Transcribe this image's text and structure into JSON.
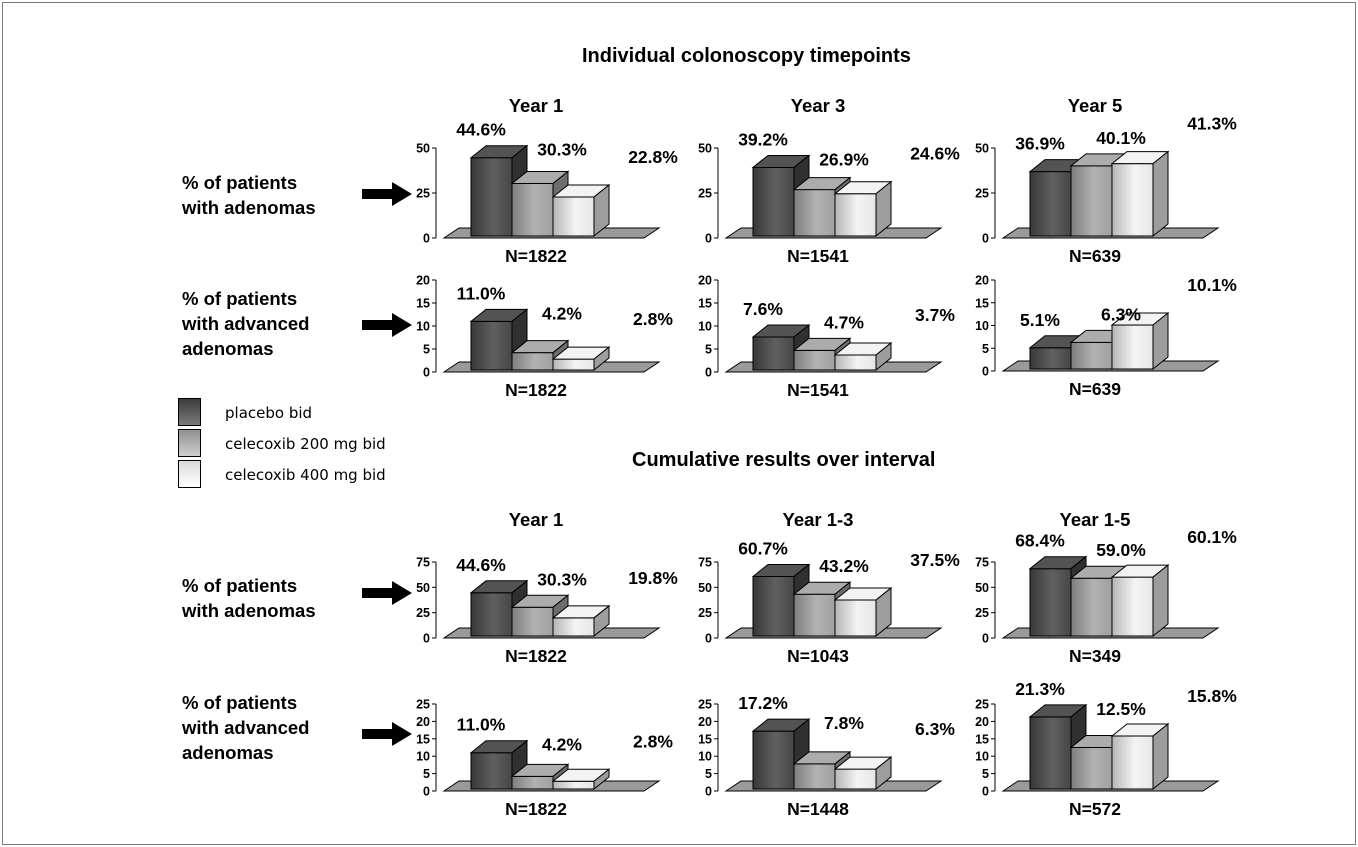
{
  "sections": {
    "individual_title": "Individual colonoscopy timepoints",
    "cumulative_title": "Cumulative results over interval"
  },
  "row_labels": {
    "adenomas": [
      "% of patients",
      "with adenomas"
    ],
    "advanced": [
      "% of patients",
      "with advanced",
      "adenomas"
    ]
  },
  "legend": [
    {
      "label": "placebo bid",
      "color_top": "#3c3c3c",
      "color_bottom": "#7a7a7a"
    },
    {
      "label": "celecoxib 200 mg bid",
      "color_top": "#8f8f8f",
      "color_bottom": "#cfcfcf"
    },
    {
      "label": "celecoxib 400 mg bid",
      "color_top": "#d9d9d9",
      "color_bottom": "#ffffff"
    }
  ],
  "colors": {
    "placebo": "#4a4a4a",
    "celecoxib_200": "#a8a8a8",
    "celecoxib_400": "#f2f2f2",
    "floor": "#9a9a9a"
  },
  "chart_data": [
    {
      "type": "bar",
      "section": "Individual colonoscopy timepoints",
      "title": "Year 1",
      "row": "% of patients with adenomas",
      "categories": [
        "placebo bid",
        "celecoxib 200 mg bid",
        "celecoxib 400 mg bid"
      ],
      "values": [
        44.6,
        30.3,
        22.8
      ],
      "labels": [
        "44.6%",
        "30.3%",
        "22.8%"
      ],
      "n_label": "N=1822",
      "ylim": [
        0,
        50
      ],
      "yticks": [
        0,
        25,
        50
      ]
    },
    {
      "type": "bar",
      "section": "Individual colonoscopy timepoints",
      "title": "Year 3",
      "row": "% of patients with adenomas",
      "categories": [
        "placebo bid",
        "celecoxib 200 mg bid",
        "celecoxib 400 mg bid"
      ],
      "values": [
        39.2,
        26.9,
        24.6
      ],
      "labels": [
        "39.2%",
        "26.9%",
        "24.6%"
      ],
      "n_label": "N=1541",
      "ylim": [
        0,
        50
      ],
      "yticks": [
        0,
        25,
        50
      ]
    },
    {
      "type": "bar",
      "section": "Individual colonoscopy timepoints",
      "title": "Year 5",
      "row": "% of patients with adenomas",
      "categories": [
        "placebo bid",
        "celecoxib 200 mg bid",
        "celecoxib 400 mg bid"
      ],
      "values": [
        36.9,
        40.1,
        41.3
      ],
      "labels": [
        "36.9%",
        "40.1%",
        "41.3%"
      ],
      "n_label": "N=639",
      "ylim": [
        0,
        50
      ],
      "yticks": [
        0,
        25,
        50
      ]
    },
    {
      "type": "bar",
      "section": "Individual colonoscopy timepoints",
      "title": "",
      "row": "% of patients with advanced adenomas",
      "categories": [
        "placebo bid",
        "celecoxib 200 mg bid",
        "celecoxib 400 mg bid"
      ],
      "values": [
        11.0,
        4.2,
        2.8
      ],
      "labels": [
        "11.0%",
        "4.2%",
        "2.8%"
      ],
      "n_label": "N=1822",
      "ylim": [
        0,
        20
      ],
      "yticks": [
        0,
        5,
        10,
        15,
        20
      ]
    },
    {
      "type": "bar",
      "section": "Individual colonoscopy timepoints",
      "title": "",
      "row": "% of patients with advanced adenomas",
      "categories": [
        "placebo bid",
        "celecoxib 200 mg bid",
        "celecoxib 400 mg bid"
      ],
      "values": [
        7.6,
        4.7,
        3.7
      ],
      "labels": [
        "7.6%",
        "4.7%",
        "3.7%"
      ],
      "n_label": "N=1541",
      "ylim": [
        0,
        20
      ],
      "yticks": [
        0,
        5,
        10,
        15,
        20
      ]
    },
    {
      "type": "bar",
      "section": "Individual colonoscopy timepoints",
      "title": "",
      "row": "% of patients with advanced adenomas",
      "categories": [
        "placebo bid",
        "celecoxib 200 mg bid",
        "celecoxib 400 mg bid"
      ],
      "values": [
        5.1,
        6.3,
        10.1
      ],
      "labels": [
        "5.1%",
        "6.3%",
        "10.1%"
      ],
      "n_label": "N=639",
      "ylim": [
        0,
        20
      ],
      "yticks": [
        0,
        5,
        10,
        15,
        20
      ]
    },
    {
      "type": "bar",
      "section": "Cumulative results over interval",
      "title": "Year 1",
      "row": "% of patients with adenomas",
      "categories": [
        "placebo bid",
        "celecoxib 200 mg bid",
        "celecoxib 400 mg bid"
      ],
      "values": [
        44.6,
        30.3,
        19.8
      ],
      "labels": [
        "44.6%",
        "30.3%",
        "19.8%"
      ],
      "n_label": "N=1822",
      "ylim": [
        0,
        75
      ],
      "yticks": [
        0,
        25,
        50,
        75
      ]
    },
    {
      "type": "bar",
      "section": "Cumulative results over interval",
      "title": "Year 1-3",
      "row": "% of patients with adenomas",
      "categories": [
        "placebo bid",
        "celecoxib 200 mg bid",
        "celecoxib 400 mg bid"
      ],
      "values": [
        60.7,
        43.2,
        37.5
      ],
      "labels": [
        "60.7%",
        "43.2%",
        "37.5%"
      ],
      "n_label": "N=1043",
      "ylim": [
        0,
        75
      ],
      "yticks": [
        0,
        25,
        50,
        75
      ]
    },
    {
      "type": "bar",
      "section": "Cumulative results over interval",
      "title": "Year 1-5",
      "row": "% of patients with adenomas",
      "categories": [
        "placebo bid",
        "celecoxib 200 mg bid",
        "celecoxib 400 mg bid"
      ],
      "values": [
        68.4,
        59.0,
        60.1
      ],
      "labels": [
        "68.4%",
        "59.0%",
        "60.1%"
      ],
      "n_label": "N=349",
      "ylim": [
        0,
        75
      ],
      "yticks": [
        0,
        25,
        50,
        75
      ]
    },
    {
      "type": "bar",
      "section": "Cumulative results over interval",
      "title": "",
      "row": "% of patients with advanced adenomas",
      "categories": [
        "placebo bid",
        "celecoxib 200 mg bid",
        "celecoxib 400 mg bid"
      ],
      "values": [
        11.0,
        4.2,
        2.8
      ],
      "labels": [
        "11.0%",
        "4.2%",
        "2.8%"
      ],
      "n_label": "N=1822",
      "ylim": [
        0,
        25
      ],
      "yticks": [
        0,
        5,
        10,
        15,
        20,
        25
      ]
    },
    {
      "type": "bar",
      "section": "Cumulative results over interval",
      "title": "",
      "row": "% of patients with advanced adenomas",
      "categories": [
        "placebo bid",
        "celecoxib 200 mg bid",
        "celecoxib 400 mg bid"
      ],
      "values": [
        17.2,
        7.8,
        6.3
      ],
      "labels": [
        "17.2%",
        "7.8%",
        "6.3%"
      ],
      "n_label": "N=1448",
      "ylim": [
        0,
        25
      ],
      "yticks": [
        0,
        5,
        10,
        15,
        20,
        25
      ]
    },
    {
      "type": "bar",
      "section": "Cumulative results over interval",
      "title": "",
      "row": "% of patients with advanced adenomas",
      "categories": [
        "placebo bid",
        "celecoxib 200 mg bid",
        "celecoxib 400 mg bid"
      ],
      "values": [
        21.3,
        12.5,
        15.8
      ],
      "labels": [
        "21.3%",
        "12.5%",
        "15.8%"
      ],
      "n_label": "N=572",
      "ylim": [
        0,
        25
      ],
      "yticks": [
        0,
        5,
        10,
        15,
        20,
        25
      ]
    }
  ]
}
